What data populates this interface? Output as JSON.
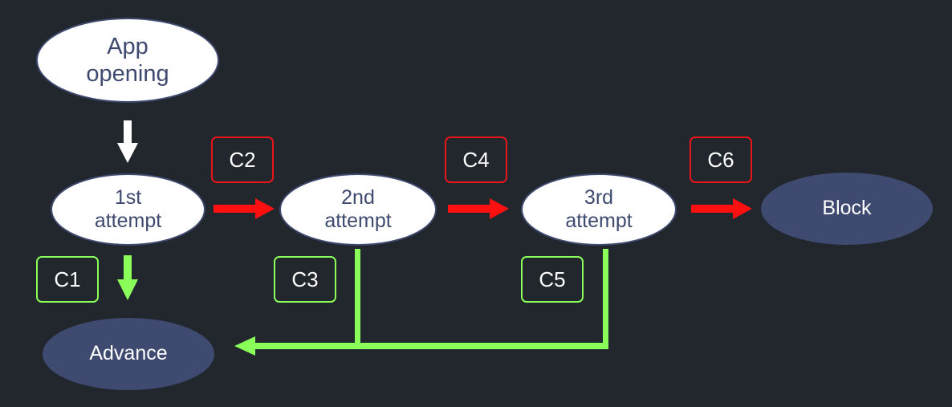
{
  "nodes": {
    "app_opening": "App\nopening",
    "attempt_1": "1st\nattempt",
    "attempt_2": "2nd\nattempt",
    "attempt_3": "3rd\nattempt",
    "block": "Block",
    "advance": "Advance"
  },
  "conditions": {
    "c1": "C1",
    "c2": "C2",
    "c3": "C3",
    "c4": "C4",
    "c5": "C5",
    "c6": "C6"
  },
  "colors": {
    "background": "#22262d",
    "node_dark": "#3e4a6f",
    "node_text": "#3e4a6f",
    "arrow_fail": "#ff1010",
    "arrow_success": "#8aff5a",
    "arrow_start": "#ffffff"
  }
}
